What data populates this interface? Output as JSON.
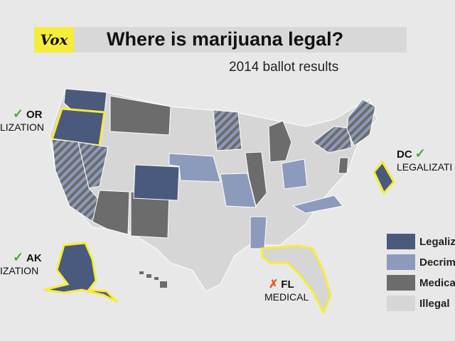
{
  "header": {
    "logo": "Vox",
    "title": "Where is marijuana legal?",
    "subtitle": "2014 ballot results"
  },
  "callouts": {
    "or": {
      "mark": "✓",
      "code": "OR",
      "result": "LIZATION"
    },
    "dc": {
      "mark": "✓",
      "code": "DC",
      "result": "LEGALIZATI"
    },
    "ak": {
      "mark": "✓",
      "code": "AK",
      "result": "IZATION"
    },
    "fl": {
      "mark": "✗",
      "code": "FL",
      "result": "MEDICAL"
    }
  },
  "legend": [
    {
      "label": "Legaliz",
      "color": "#4a5a7c"
    },
    {
      "label": "Decrim",
      "color": "#8c9bbb"
    },
    {
      "label": "Medica",
      "color": "#6c6c6c"
    },
    {
      "label": "Illegal",
      "color": "#d6d6d6"
    }
  ],
  "colors": {
    "legalized": "#4a5a7c",
    "decriminalized": "#8c9bbb",
    "medical": "#6c6c6c",
    "illegal": "#d6d6d6",
    "highlight": "#f6ec3a",
    "check": "#4aa532",
    "cross": "#e8592b",
    "logo_bg": "#f6ec3a"
  }
}
